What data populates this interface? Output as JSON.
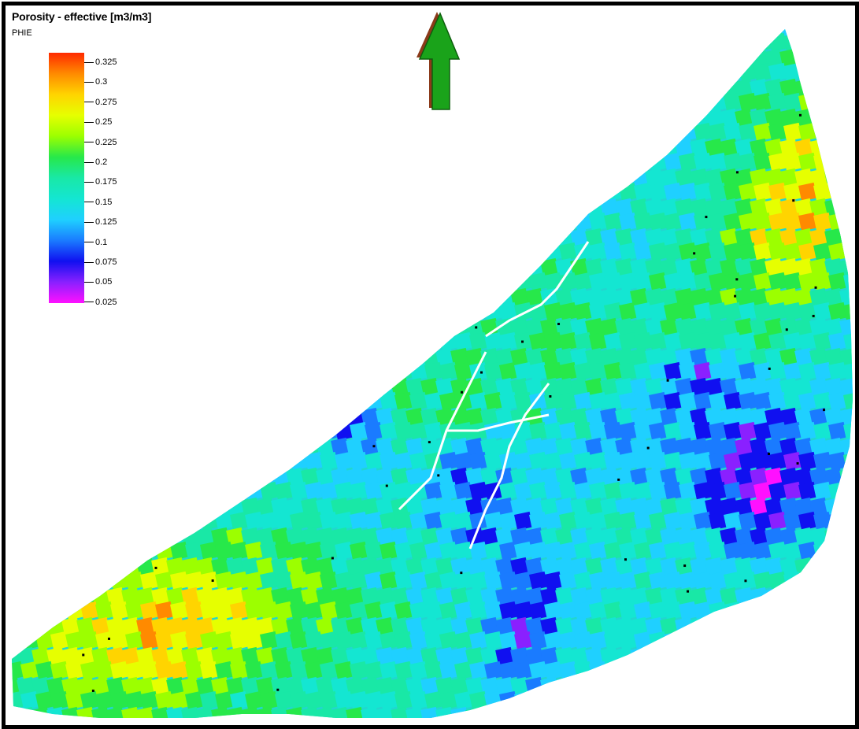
{
  "map": {
    "title": "Porosity - effective [m3/m3]",
    "property_code": "PHIE",
    "north_arrow": {
      "icon": "north-arrow-icon",
      "color": "#1aa31a",
      "shadow": "#8b3a1a"
    },
    "legend": {
      "labels": [
        "0.325",
        "0.3",
        "0.275",
        "0.25",
        "0.225",
        "0.2",
        "0.175",
        "0.15",
        "0.125",
        "0.1",
        "0.075",
        "0.05",
        "0.025"
      ],
      "colors": [
        "#ff2a00",
        "#ff8a00",
        "#ffd400",
        "#e6ff00",
        "#9cff00",
        "#27e84a",
        "#19e8a6",
        "#14e6d2",
        "#1fd0ff",
        "#1a7bff",
        "#1010f0",
        "#8a20ff",
        "#ff10ff"
      ]
    }
  }
}
